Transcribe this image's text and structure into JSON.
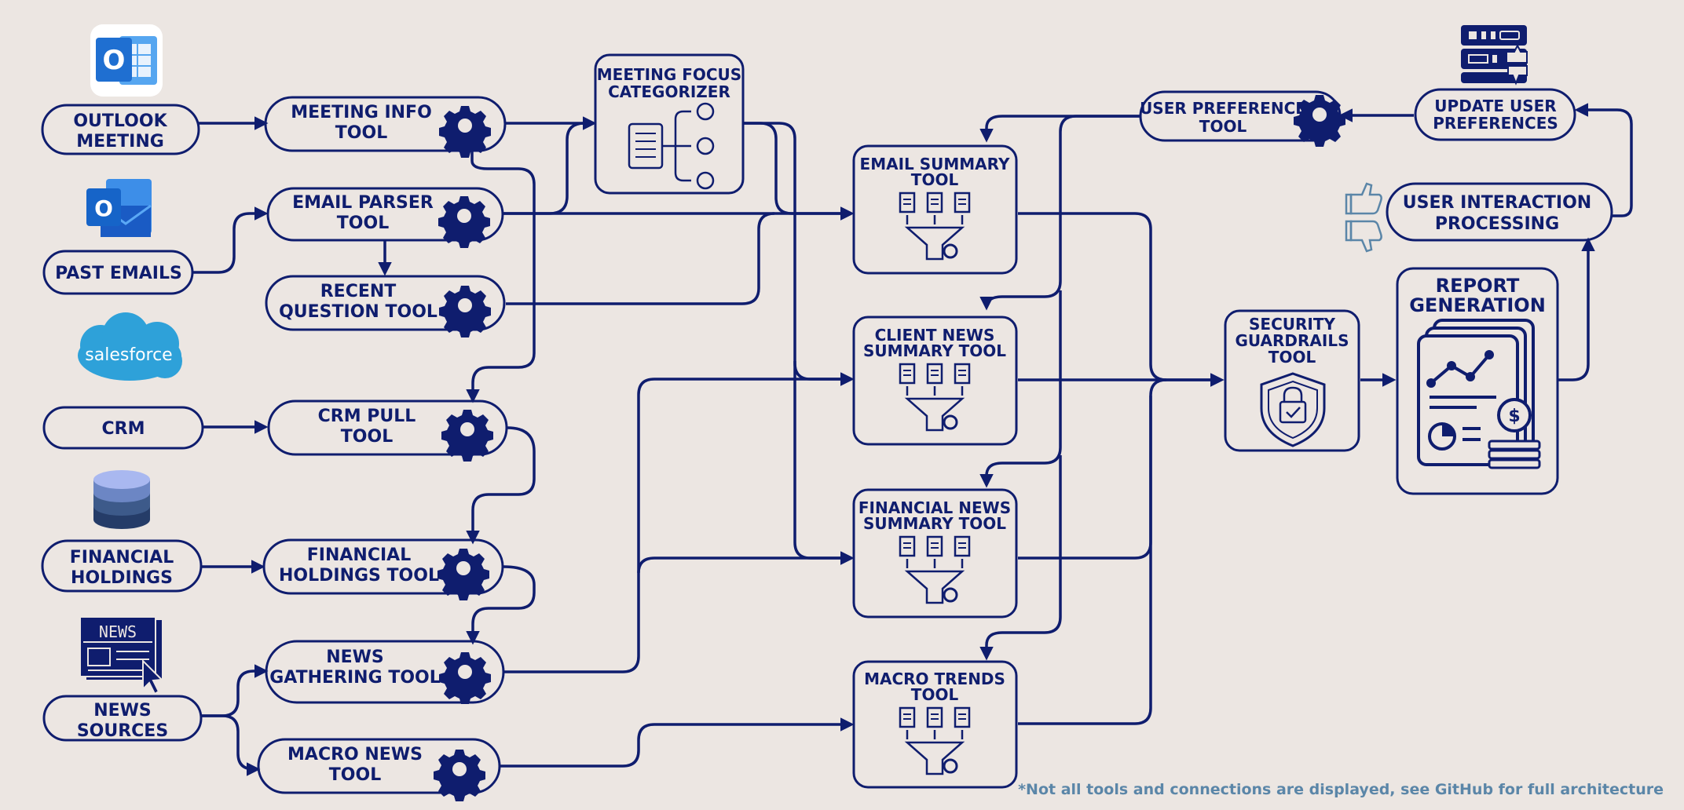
{
  "sources": {
    "outlook": {
      "line1": "OUTLOOK",
      "line2": "MEETING"
    },
    "past_emails": {
      "line1": "PAST EMAILS"
    },
    "salesforce_logo": "salesforce",
    "crm": {
      "line1": "CRM"
    },
    "financial_holdings": {
      "line1": "FINANCIAL",
      "line2": "HOLDINGS"
    },
    "news_icon_text": "NEWS",
    "news_sources": {
      "line1": "NEWS",
      "line2": "SOURCES"
    }
  },
  "tools": {
    "meeting_info": {
      "line1": "MEETING INFO",
      "line2": "TOOL"
    },
    "email_parser": {
      "line1": "EMAIL PARSER",
      "line2": "TOOL"
    },
    "recent_question": {
      "line1": "RECENT",
      "line2": "QUESTION TOOL"
    },
    "crm_pull": {
      "line1": "CRM PULL",
      "line2": "TOOL"
    },
    "financial_holdings": {
      "line1": "FINANCIAL",
      "line2": "HOLDINGS TOOL"
    },
    "news_gathering": {
      "line1": "NEWS",
      "line2": "GATHERING TOOL"
    },
    "macro_news": {
      "line1": "MACRO NEWS",
      "line2": "TOOL"
    }
  },
  "categorizer": {
    "line1": "MEETING FOCUS",
    "line2": "CATEGORIZER"
  },
  "summaries": {
    "email": {
      "line1": "EMAIL SUMMARY",
      "line2": "TOOL"
    },
    "client_news": {
      "line1": "CLIENT NEWS",
      "line2": "SUMMARY  TOOL"
    },
    "financial_news": {
      "line1": "FINANCIAL NEWS",
      "line2": "SUMMARY  TOOL"
    },
    "macro_trends": {
      "line1": "MACRO TRENDS",
      "line2": "TOOL"
    }
  },
  "security": {
    "line1": "SECURITY",
    "line2": "GUARDRAILS",
    "line3": "TOOL"
  },
  "report": {
    "line1": "REPORT",
    "line2": "GENERATION"
  },
  "user_preference": {
    "line1": "USER PREFERENCE",
    "line2": "TOOL"
  },
  "update_prefs": {
    "line1": "UPDATE USER",
    "line2": "PREFERENCES"
  },
  "interaction": {
    "line1": "USER INTERACTION",
    "line2": "PROCESSING"
  },
  "footnote": "*Not all tools and connections are displayed, see GitHub for full architecture",
  "colors": {
    "navy": "#0f1d6e",
    "background": "#ece6e2",
    "note": "#5b86a8",
    "outlook_blue": "#1f6fd1",
    "salesforce_blue": "#2ea1d9"
  }
}
